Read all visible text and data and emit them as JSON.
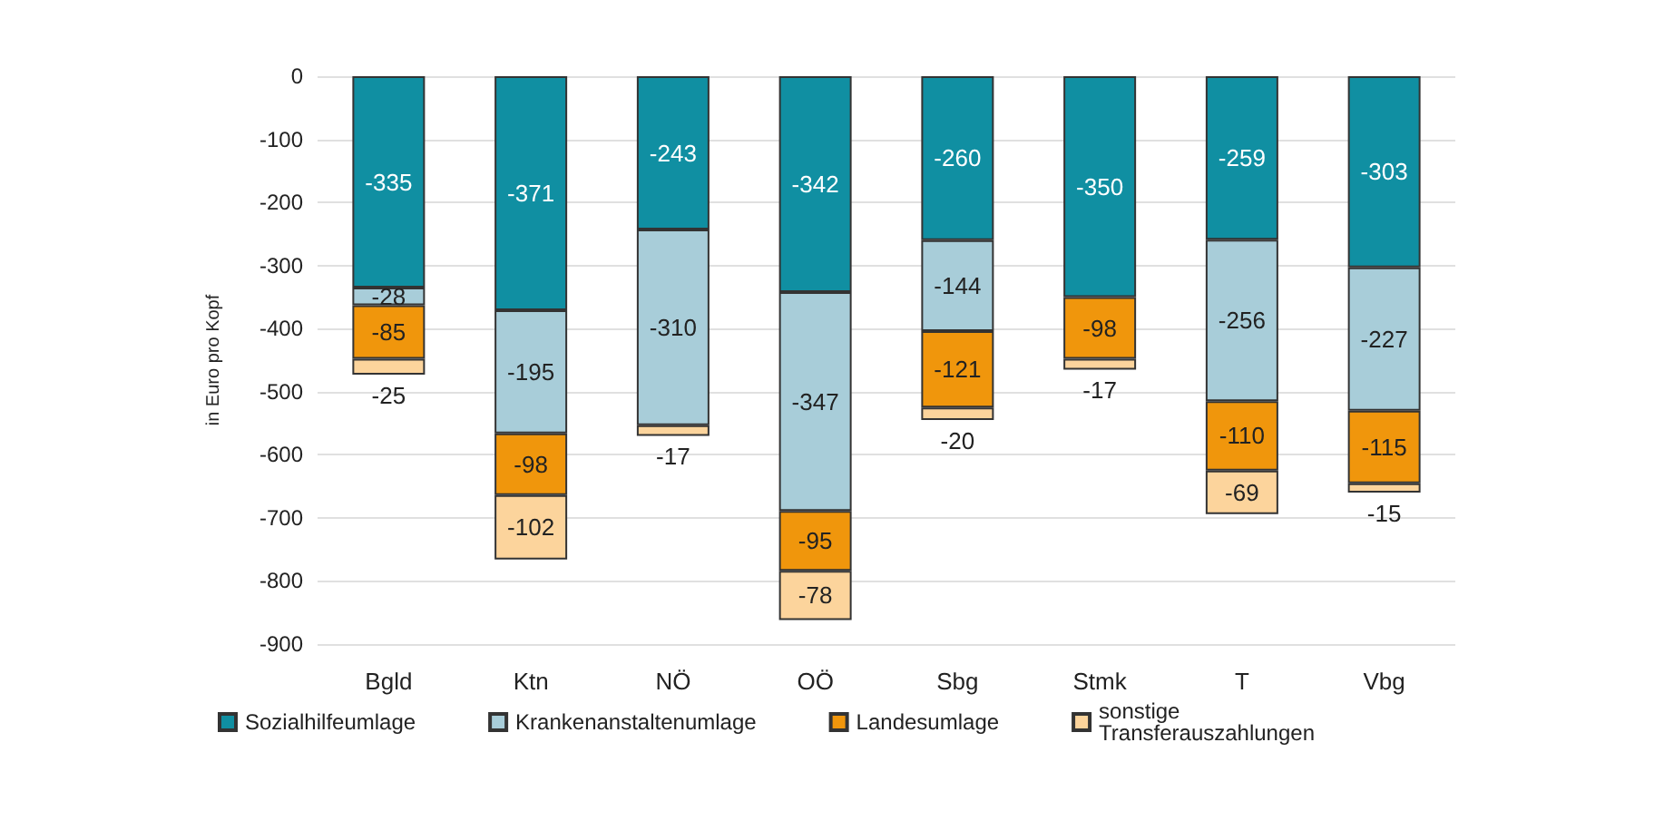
{
  "chart_data": {
    "type": "bar",
    "stacked": true,
    "ylabel": "in Euro pro Kopf",
    "categories": [
      "Bgld",
      "Ktn",
      "NÖ",
      "OÖ",
      "Sbg",
      "Stmk",
      "T",
      "Vbg"
    ],
    "series": [
      {
        "name": "Sozialhilfeumlage",
        "color": "#108fa2",
        "values": [
          -335,
          -371,
          -243,
          -342,
          -260,
          -350,
          -259,
          -303
        ]
      },
      {
        "name": "Krankenanstaltenumlage",
        "color": "#a8cdd9",
        "values": [
          -28,
          -195,
          -310,
          -347,
          -144,
          null,
          -256,
          -227
        ]
      },
      {
        "name": "Landesumlage",
        "color": "#f0960c",
        "values": [
          -85,
          -98,
          null,
          -95,
          -121,
          -98,
          -110,
          -115
        ]
      },
      {
        "name": "sonstige Transferauszahlungen",
        "color": "#fcd49c",
        "values": [
          -25,
          -102,
          -17,
          -78,
          -20,
          -17,
          -69,
          -15
        ]
      }
    ],
    "ylim": [
      -900,
      0
    ],
    "yticks": [
      -900,
      -800,
      -700,
      -600,
      -500,
      -400,
      -300,
      -200,
      -100,
      0
    ],
    "grid": "y",
    "legend": "bottom",
    "data_labels": true
  }
}
